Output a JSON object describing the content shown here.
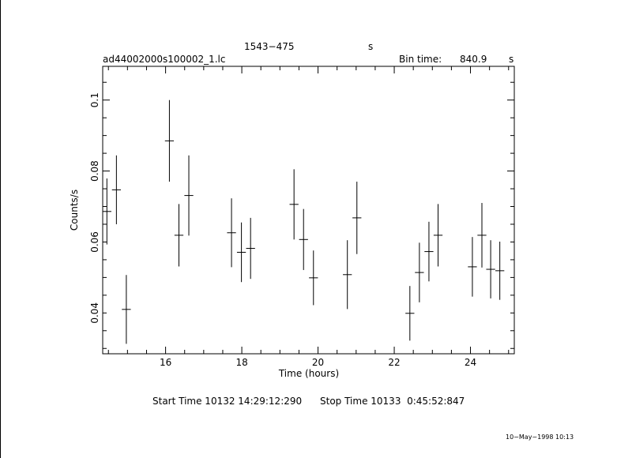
{
  "header": {
    "source": "1543−475",
    "units_marker": "s",
    "file": "ad44002000s100002_1.lc",
    "bin_label": "Bin time:",
    "bin_value": "840.9",
    "bin_unit": "s"
  },
  "footer": {
    "start_label": "Start Time 10132 14:29:12:290",
    "stop_label": "Stop Time 10133  0:45:52:847",
    "timestamp": "10−May−1998 10:13"
  },
  "chart_data": {
    "type": "scatter",
    "xlabel": "Time (hours)",
    "ylabel": "Counts/s",
    "xlim": [
      14.35,
      25.15
    ],
    "ylim": [
      0.0285,
      0.1095
    ],
    "x_ticks": [
      16,
      18,
      20,
      22,
      24
    ],
    "y_ticks": [
      0.04,
      0.06,
      0.08,
      0.1
    ],
    "y_tick_labels": [
      "0.04",
      "0.06",
      "0.08",
      "0.1"
    ],
    "grid": false,
    "points": [
      {
        "x": 14.46,
        "xerr": 0.117,
        "y": 0.0686,
        "yerr": 0.0093
      },
      {
        "x": 14.71,
        "xerr": 0.117,
        "y": 0.0747,
        "yerr": 0.0097
      },
      {
        "x": 14.97,
        "xerr": 0.117,
        "y": 0.041,
        "yerr": 0.0097
      },
      {
        "x": 16.1,
        "xerr": 0.117,
        "y": 0.0885,
        "yerr": 0.0115
      },
      {
        "x": 16.35,
        "xerr": 0.117,
        "y": 0.0619,
        "yerr": 0.0088
      },
      {
        "x": 16.61,
        "xerr": 0.117,
        "y": 0.0731,
        "yerr": 0.0113
      },
      {
        "x": 17.73,
        "xerr": 0.117,
        "y": 0.0626,
        "yerr": 0.0097
      },
      {
        "x": 17.99,
        "xerr": 0.117,
        "y": 0.0571,
        "yerr": 0.0084
      },
      {
        "x": 18.23,
        "xerr": 0.117,
        "y": 0.0582,
        "yerr": 0.0086
      },
      {
        "x": 19.37,
        "xerr": 0.117,
        "y": 0.0706,
        "yerr": 0.0099
      },
      {
        "x": 19.62,
        "xerr": 0.117,
        "y": 0.0607,
        "yerr": 0.0086
      },
      {
        "x": 19.88,
        "xerr": 0.117,
        "y": 0.0499,
        "yerr": 0.0077
      },
      {
        "x": 20.77,
        "xerr": 0.117,
        "y": 0.0508,
        "yerr": 0.0097
      },
      {
        "x": 21.02,
        "xerr": 0.117,
        "y": 0.0668,
        "yerr": 0.0102
      },
      {
        "x": 22.41,
        "xerr": 0.117,
        "y": 0.0399,
        "yerr": 0.0077
      },
      {
        "x": 22.66,
        "xerr": 0.117,
        "y": 0.0514,
        "yerr": 0.0084
      },
      {
        "x": 22.91,
        "xerr": 0.117,
        "y": 0.0573,
        "yerr": 0.0084
      },
      {
        "x": 23.15,
        "xerr": 0.117,
        "y": 0.0619,
        "yerr": 0.0088
      },
      {
        "x": 24.05,
        "xerr": 0.117,
        "y": 0.053,
        "yerr": 0.0084
      },
      {
        "x": 24.3,
        "xerr": 0.117,
        "y": 0.0619,
        "yerr": 0.0091
      },
      {
        "x": 24.53,
        "xerr": 0.117,
        "y": 0.0523,
        "yerr": 0.0082
      },
      {
        "x": 24.77,
        "xerr": 0.117,
        "y": 0.0519,
        "yerr": 0.0082
      }
    ]
  }
}
